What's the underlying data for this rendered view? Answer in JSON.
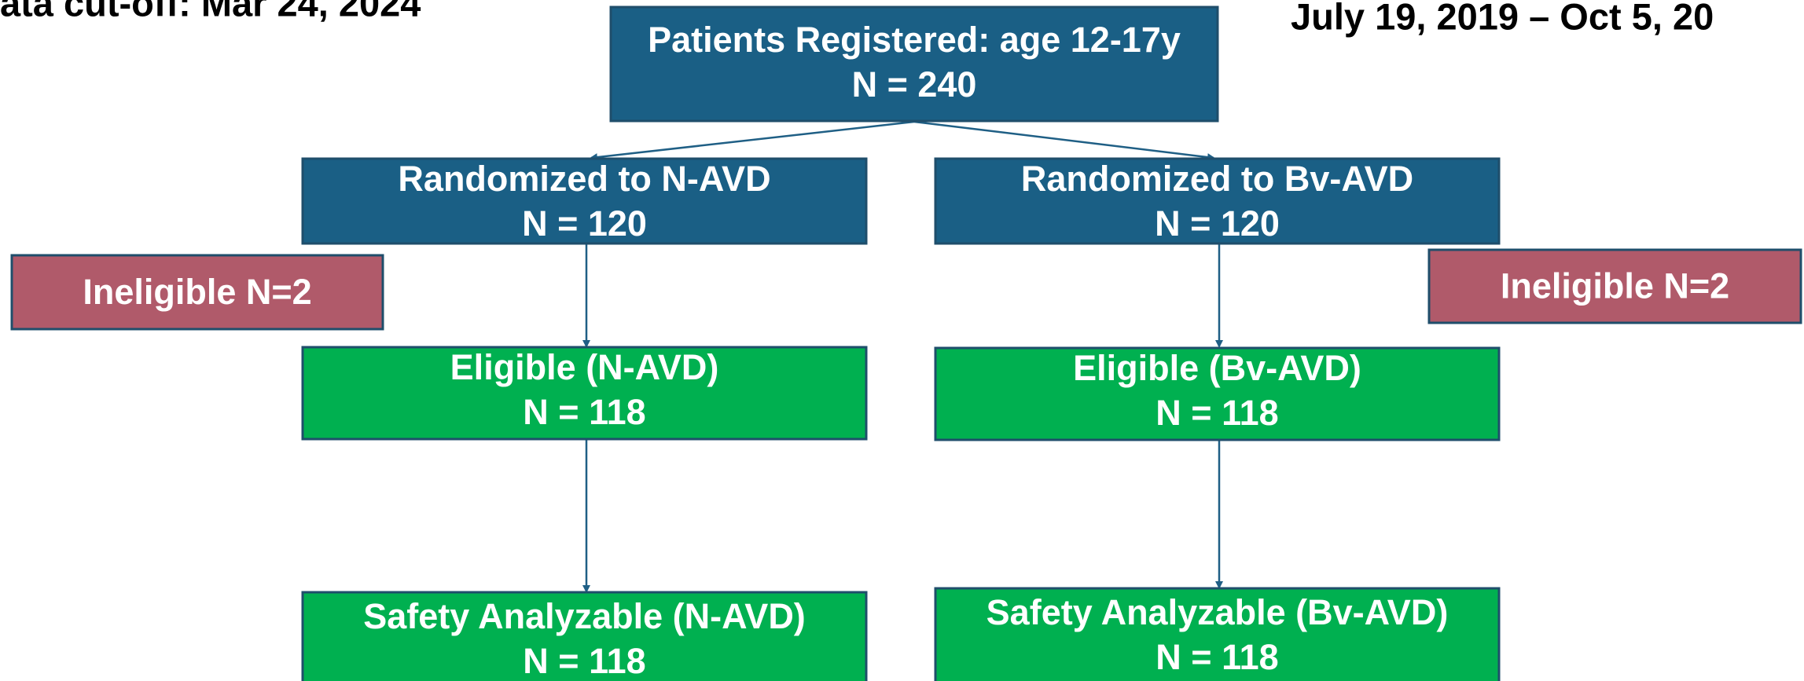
{
  "header": {
    "left": "ata cut-off: Mar 24, 2024",
    "right": "July 19, 2019 – Oct 5, 20"
  },
  "nodes": [
    {
      "label": "Patients Registered: age 12-17y",
      "count": "N = 240"
    },
    {
      "label": "Randomized to N-AVD",
      "count": "N = 120"
    },
    {
      "label": "Randomized to Bv-AVD",
      "count": "N = 120"
    },
    {
      "label": "Ineligible N=2"
    },
    {
      "label": "Ineligible N=2"
    },
    {
      "label": "Eligible (N-AVD)",
      "count": "N = 118"
    },
    {
      "label": "Eligible (Bv-AVD)",
      "count": "N = 118"
    },
    {
      "label": "Safety Analyzable (N-AVD)",
      "count": "N = 118"
    },
    {
      "label": "Safety Analyzable (Bv-AVD)",
      "count": "N = 118"
    }
  ]
}
